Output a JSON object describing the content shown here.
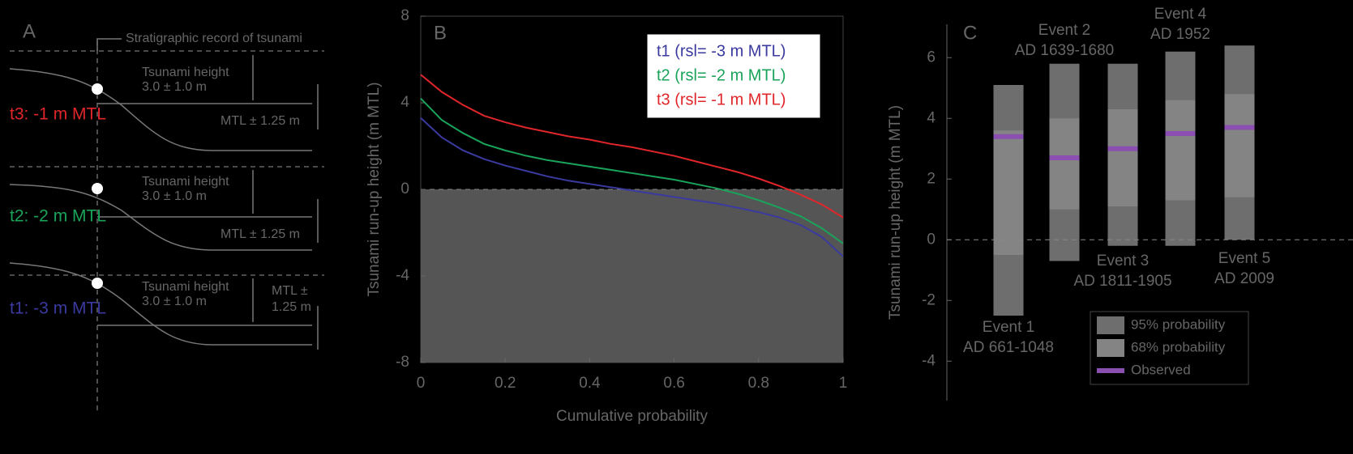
{
  "schematic": {
    "label": "A",
    "caption": "Stratigraphic record of tsunami",
    "scenarios": [
      {
        "name": "t3: -1 m MTL",
        "color": "#e0262a",
        "height_label": "Tsunami height",
        "height": "3.0 ± 1.0 m",
        "mtl": [
          "MTL ± 1.25 m"
        ]
      },
      {
        "name": "t2: -2 m MTL",
        "color": "#1aa35a",
        "height_label": "Tsunami height",
        "height": "3.0 ± 1.0 m",
        "mtl": [
          "MTL ± 1.25 m"
        ]
      },
      {
        "name": "t1: -3 m MTL",
        "color": "#3a3aa0",
        "height_label": "Tsunami height",
        "height": "3.0 ± 1.0 m",
        "mtl": [
          "MTL ±",
          "1.25 m"
        ]
      }
    ]
  },
  "chart_data": [
    {
      "type": "line",
      "label": "B",
      "x_label": "Cumulative probability",
      "y_label": "Tsunami run-up height (m MTL)",
      "x": [
        0,
        0.05,
        0.1,
        0.15,
        0.2,
        0.25,
        0.3,
        0.35,
        0.4,
        0.45,
        0.5,
        0.55,
        0.6,
        0.65,
        0.7,
        0.75,
        0.8,
        0.85,
        0.9,
        0.95,
        1
      ],
      "series": [
        {
          "name": "t1 (rsl= -3 m MTL)",
          "color": "#3a3aa0",
          "values": [
            3.3,
            2.4,
            1.8,
            1.4,
            1.1,
            0.85,
            0.6,
            0.4,
            0.25,
            0.1,
            -0.05,
            -0.2,
            -0.35,
            -0.5,
            -0.65,
            -0.85,
            -1.05,
            -1.3,
            -1.65,
            -2.2,
            -3.1
          ]
        },
        {
          "name": "t2 (rsl= -2 m MTL)",
          "color": "#1aa35a",
          "values": [
            4.2,
            3.2,
            2.6,
            2.1,
            1.8,
            1.55,
            1.35,
            1.2,
            1.05,
            0.9,
            0.75,
            0.6,
            0.45,
            0.25,
            0.05,
            -0.2,
            -0.5,
            -0.85,
            -1.25,
            -1.8,
            -2.5
          ]
        },
        {
          "name": "t3 (rsl= -1 m MTL)",
          "color": "#e0262a",
          "values": [
            5.3,
            4.5,
            3.9,
            3.4,
            3.1,
            2.85,
            2.65,
            2.45,
            2.3,
            2.1,
            1.95,
            1.75,
            1.55,
            1.3,
            1.05,
            0.8,
            0.5,
            0.15,
            -0.25,
            -0.7,
            -1.3
          ]
        }
      ],
      "shade_below": 0,
      "xlim": [
        0,
        1
      ],
      "xticks": [
        0,
        0.2,
        0.4,
        0.6,
        0.8,
        1
      ],
      "ylim": [
        -8,
        8
      ],
      "yticks": [
        -8,
        -4,
        0,
        4,
        8
      ]
    },
    {
      "type": "range_bar",
      "label": "C",
      "y_label": "Tsunami run-up height (m MTL)",
      "categories": [
        "Event 1",
        "Event 2",
        "Event 3",
        "Event 4",
        "Event 5"
      ],
      "periods": [
        "AD 661-1048",
        "AD 1639-1680",
        "AD 1811-1905",
        "AD 1952",
        "AD 2009"
      ],
      "series": [
        {
          "name": "95% probability",
          "color": "#6e6e6e",
          "low": [
            -2.5,
            -0.7,
            -0.2,
            -0.2,
            0
          ],
          "high": [
            5.1,
            5.8,
            5.8,
            6.2,
            6.4
          ]
        },
        {
          "name": "68% probability",
          "color": "#848484",
          "low": [
            -0.5,
            1.0,
            1.1,
            1.3,
            1.4
          ],
          "high": [
            3.6,
            4.0,
            4.3,
            4.6,
            4.8
          ]
        },
        {
          "name": "Observed",
          "color": "#8a4fb0",
          "values": [
            3.4,
            2.7,
            3.0,
            3.5,
            3.7
          ]
        }
      ],
      "reference_line": 0,
      "ylim": [
        -5.3,
        7.1
      ],
      "yticks": [
        -4,
        -2,
        0,
        2,
        4,
        6
      ]
    }
  ]
}
